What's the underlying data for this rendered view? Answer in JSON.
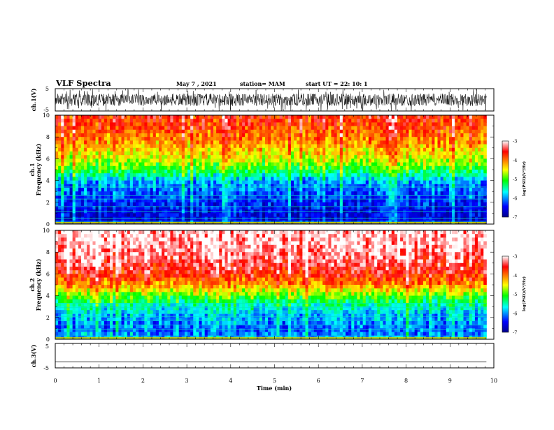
{
  "header": {
    "title": "VLF Spectra",
    "date": "May 7 , 2021",
    "station": "station= MAM",
    "start": "start UT =  22: 10: 1"
  },
  "colors": {
    "colormap": [
      "#00008a",
      "#0000ff",
      "#00ffff",
      "#00ff00",
      "#ffff00",
      "#ff7f00",
      "#ff0000",
      "#ffffff"
    ]
  },
  "chart_data": [
    {
      "type": "line",
      "panel": "ch1-waveform",
      "ylabel": "ch.1(V)",
      "ylim": [
        -5,
        5
      ],
      "yticks": [
        "5",
        "-5"
      ],
      "xlim": [
        0,
        10
      ],
      "data_extent_min": 9.83,
      "description_of_values": "broadband noise, amplitude mostly within about ±3 V, occasional spikes to ±5 V"
    },
    {
      "type": "heatmap",
      "panel": "ch1-spectrogram",
      "ylabel_top": "ch.1",
      "ylabel": "Frequency (kHz)",
      "ylim": [
        0,
        10
      ],
      "yticks": [
        "0",
        "2",
        "4",
        "6",
        "8",
        "10"
      ],
      "xlim": [
        0,
        10
      ],
      "data_extent_min": 9.83,
      "colorbar": {
        "label": "log(PSD)(V²/Hz)",
        "range": [
          -7,
          -3
        ],
        "ticks": [
          "-3",
          "-4",
          "-5",
          "-6",
          "-7"
        ]
      },
      "profile": [
        {
          "freq_khz": 0.3,
          "log_psd": -6.6
        },
        {
          "freq_khz": 1.0,
          "log_psd": -6.6
        },
        {
          "freq_khz": 2.0,
          "log_psd": -6.4
        },
        {
          "freq_khz": 3.0,
          "log_psd": -6.2
        },
        {
          "freq_khz": 4.0,
          "log_psd": -5.9
        },
        {
          "freq_khz": 5.0,
          "log_psd": -5.1
        },
        {
          "freq_khz": 6.0,
          "log_psd": -4.6
        },
        {
          "freq_khz": 7.0,
          "log_psd": -4.3
        },
        {
          "freq_khz": 8.0,
          "log_psd": -4.0
        },
        {
          "freq_khz": 9.0,
          "log_psd": -3.8
        },
        {
          "freq_khz": 10.0,
          "log_psd": -3.7
        }
      ],
      "tone_lines_khz": [
        0.25,
        0.55,
        1.15,
        1.6,
        2.3,
        2.6,
        3.4
      ]
    },
    {
      "type": "heatmap",
      "panel": "ch2-spectrogram",
      "ylabel_top": "ch.2",
      "ylabel": "Frequency (kHz)",
      "ylim": [
        0,
        10
      ],
      "yticks": [
        "0",
        "2",
        "4",
        "6",
        "8",
        "10"
      ],
      "xlim": [
        0,
        10
      ],
      "data_extent_min": 9.83,
      "colorbar": {
        "label": "log(PSD)(V²/Hz)",
        "range": [
          -7,
          -3
        ],
        "ticks": [
          "-3",
          "-4",
          "-5",
          "-6",
          "-7"
        ]
      },
      "profile": [
        {
          "freq_khz": 0.3,
          "log_psd": -6.0
        },
        {
          "freq_khz": 1.0,
          "log_psd": -6.1
        },
        {
          "freq_khz": 2.0,
          "log_psd": -5.9
        },
        {
          "freq_khz": 3.0,
          "log_psd": -5.6
        },
        {
          "freq_khz": 4.0,
          "log_psd": -4.9
        },
        {
          "freq_khz": 5.0,
          "log_psd": -4.1
        },
        {
          "freq_khz": 6.0,
          "log_psd": -3.6
        },
        {
          "freq_khz": 7.0,
          "log_psd": -3.35
        },
        {
          "freq_khz": 8.0,
          "log_psd": -3.2
        },
        {
          "freq_khz": 9.0,
          "log_psd": -3.1
        },
        {
          "freq_khz": 10.0,
          "log_psd": -3.1
        }
      ],
      "tone_lines_khz": [
        0.3,
        0.9,
        1.3,
        1.75,
        2.1,
        2.5,
        2.9,
        3.3
      ]
    },
    {
      "type": "line",
      "panel": "ch3-waveform",
      "ylabel": "ch.3(V)",
      "ylim": [
        -5,
        5
      ],
      "yticks": [
        "5",
        "-5"
      ],
      "xlim": [
        0,
        10
      ],
      "xlabel": "Time (min)",
      "xticks": [
        "0",
        "1",
        "2",
        "3",
        "4",
        "5",
        "6",
        "7",
        "8",
        "9",
        "10"
      ],
      "x": [
        0,
        9.83
      ],
      "y": [
        -2.5,
        -2.5
      ]
    }
  ]
}
